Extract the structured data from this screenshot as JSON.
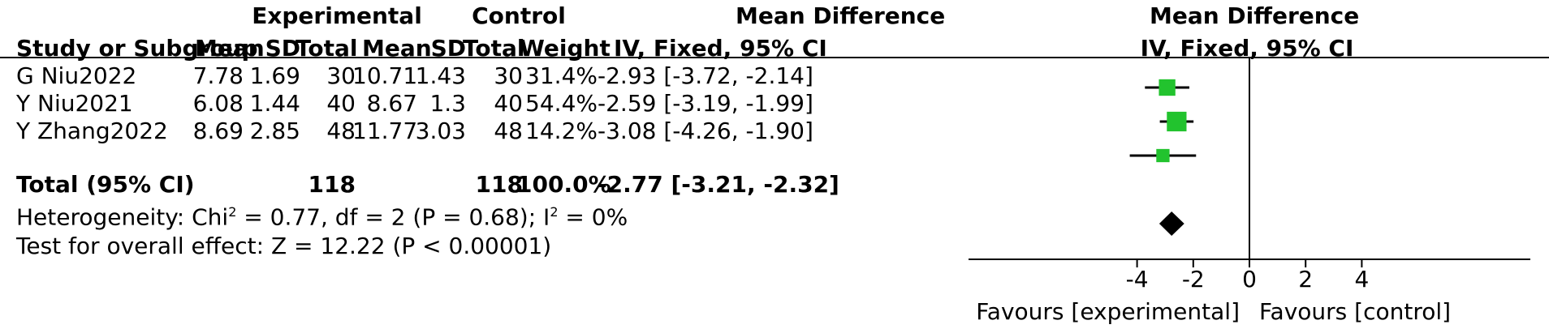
{
  "header": {
    "group1": "Experimental",
    "group2": "Control",
    "effect_measure": "Mean Difference",
    "plot_measure": "Mean Difference",
    "col_study": "Study or Subgroup",
    "col_mean_e": "Mean",
    "col_sd_e": "SD",
    "col_total_e": "Total",
    "col_mean_c": "Mean",
    "col_sd_c": "SD",
    "col_total_c": "Total",
    "col_weight": "Weight",
    "col_ci": "IV, Fixed, 95% CI",
    "plot_ci": "IV, Fixed, 95% CI"
  },
  "studies": [
    {
      "name": "G Niu2022",
      "mean_e": "7.78",
      "sd_e": "1.69",
      "total_e": "30",
      "mean_c": "10.71",
      "sd_c": "1.43",
      "total_c": "30",
      "weight": "31.4%",
      "ci": "-2.93 [-3.72, -2.14]"
    },
    {
      "name": "Y Niu2021",
      "mean_e": "6.08",
      "sd_e": "1.44",
      "total_e": "40",
      "mean_c": "8.67",
      "sd_c": "1.3",
      "total_c": "40",
      "weight": "54.4%",
      "ci": "-2.59 [-3.19, -1.99]"
    },
    {
      "name": "Y Zhang2022",
      "mean_e": "8.69",
      "sd_e": "2.85",
      "total_e": "48",
      "mean_c": "11.77",
      "sd_c": "3.03",
      "total_c": "48",
      "weight": "14.2%",
      "ci": "-3.08 [-4.26, -1.90]"
    }
  ],
  "total": {
    "label": "Total (95% CI)",
    "total_e": "118",
    "total_c": "118",
    "weight": "100.0%",
    "ci": "-2.77 [-3.21, -2.32]"
  },
  "heterogeneity": {
    "prefix": "Heterogeneity: Chi",
    "sup1": "2",
    "middle": " = 0.77, df = 2 (P = 0.68); I",
    "sup2": "2",
    "suffix": " = 0%"
  },
  "overall_effect": "Test for overall effect: Z = 12.22 (P < 0.00001)",
  "colors": {
    "study_marker": "#22c32e",
    "text": "#000000",
    "diamond": "#000000"
  },
  "chart_data": {
    "type": "forest",
    "x_label_left": "Favours [experimental]",
    "x_label_right": "Favours [control]",
    "xlim": [
      -10,
      10
    ],
    "xticks": [
      -4,
      -2,
      0,
      2,
      4
    ],
    "xtick_labels": [
      "-4",
      "-2",
      "0",
      "2",
      "4"
    ],
    "series": [
      {
        "study": "G Niu2022",
        "md": -2.93,
        "lower": -3.72,
        "upper": -2.14,
        "weight": 31.4
      },
      {
        "study": "Y Niu2021",
        "md": -2.59,
        "lower": -3.19,
        "upper": -1.99,
        "weight": 54.4
      },
      {
        "study": "Y Zhang2022",
        "md": -3.08,
        "lower": -4.26,
        "upper": -1.9,
        "weight": 14.2
      }
    ],
    "pooled": {
      "md": -2.77,
      "lower": -3.21,
      "upper": -2.32
    }
  }
}
